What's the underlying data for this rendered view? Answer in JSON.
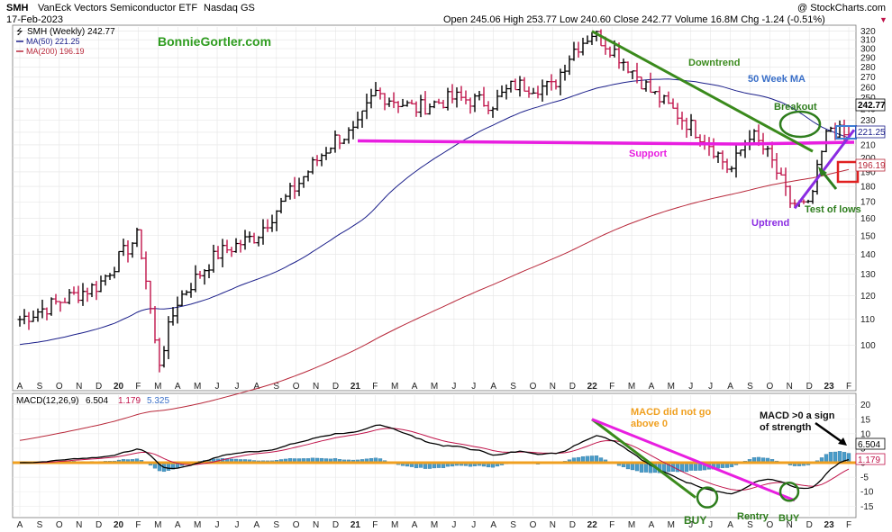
{
  "header": {
    "ticker": "SMH",
    "name": "VanEck Vectors Semiconductor ETF",
    "exchange": "Nasdaq GS",
    "date": "17-Feb-2023",
    "credit": "@ StockCharts.com",
    "quote": "Open 245.06  High 253.77  Low 240.60  Close 242.77  Volume 16.8M  Chg -1.24 (-0.51%)",
    "quote_arrow": "▼"
  },
  "legend": {
    "price": "SMH (Weekly) 242.77",
    "ma50": "MA(50) 221.25",
    "ma200": "MA(200) 196.19",
    "ma50_color": "#1b1f8a",
    "ma200_color": "#b8283a"
  },
  "watermark": "BonnieGortler.com",
  "annotations": {
    "downtrend": "Downtrend",
    "ma50": "50 Week MA",
    "breakout": "Breakout",
    "support": "Support",
    "test_lows": "Test of lows",
    "uptrend": "Uptrend",
    "macd_not0": [
      "MACD did not go",
      "above 0"
    ],
    "macd_strength": [
      "MACD >0 a sign",
      "of strength"
    ],
    "buy1": "BUY",
    "reentry": "Rentry",
    "buy2": "BUY"
  },
  "price_tags": {
    "close": "242.77",
    "ma50": "221.25",
    "ma200": "196.19"
  },
  "macd": {
    "label_prefix": "MACD(12,26,9)",
    "macd": "6.504",
    "signal": "1.179",
    "hist": "5.325",
    "tag_macd": "6.504",
    "tag_signal": "1.179"
  },
  "colors": {
    "up": "#000000",
    "down": "#c0134a",
    "support": "#e81ee0",
    "downtrend": "#3a8a1c",
    "uptrend": "#8a2be2",
    "ma50_ann": "#3a6fc8",
    "breakout": "#2e7d1d",
    "box_ma50": "#3f7fd6",
    "box_ma200": "#e02020",
    "macd_zero": "#f0a020",
    "hist": "#4a9cc9",
    "annotation_orange": "#f0a020"
  },
  "chart_data": [
    {
      "type": "candlestick",
      "title": "SMH VanEck Vectors Semiconductor ETF Nasdaq GS",
      "frequency": "weekly",
      "ylim": [
        85,
        325
      ],
      "y_ticks": [
        100,
        110,
        120,
        130,
        140,
        150,
        160,
        170,
        180,
        190,
        200,
        210,
        220,
        230,
        240,
        250,
        260,
        270,
        280,
        290,
        300,
        310,
        320
      ],
      "x_ticks": [
        "A",
        "S",
        "O",
        "N",
        "D",
        "20",
        "F",
        "M",
        "A",
        "M",
        "J",
        "J",
        "A",
        "S",
        "O",
        "N",
        "D",
        "21",
        "F",
        "M",
        "A",
        "M",
        "J",
        "J",
        "A",
        "S",
        "O",
        "N",
        "D",
        "22",
        "F",
        "M",
        "A",
        "M",
        "J",
        "J",
        "A",
        "S",
        "O",
        "N",
        "D",
        "23",
        "F"
      ],
      "key_points": [
        {
          "label": "Aug 2019",
          "close": 110
        },
        {
          "label": "Feb 2020",
          "close": 150
        },
        {
          "label": "Mar 2020 low",
          "close": 92
        },
        {
          "label": "Dec 2020",
          "close": 215
        },
        {
          "label": "Feb 2021",
          "close": 255
        },
        {
          "label": "Dec 2021 high",
          "close": 318
        },
        {
          "label": "Jun 2022",
          "close": 190
        },
        {
          "label": "Oct 2022 low",
          "close": 166
        },
        {
          "label": "Feb 2023",
          "close": 242.77
        }
      ],
      "series": [
        {
          "name": "MA(50)",
          "last": 221.25
        },
        {
          "name": "MA(200)",
          "last": 196.19
        }
      ],
      "support_level": 212
    },
    {
      "type": "line",
      "title": "MACD(12,26,9)",
      "ylim": [
        -18,
        23
      ],
      "y_ticks": [
        -15,
        -10,
        -5,
        0,
        5,
        10,
        15,
        20
      ],
      "series": [
        {
          "name": "MACD",
          "last": 6.504
        },
        {
          "name": "Signal",
          "last": 1.179
        },
        {
          "name": "Histogram",
          "last": 5.325
        }
      ]
    }
  ]
}
